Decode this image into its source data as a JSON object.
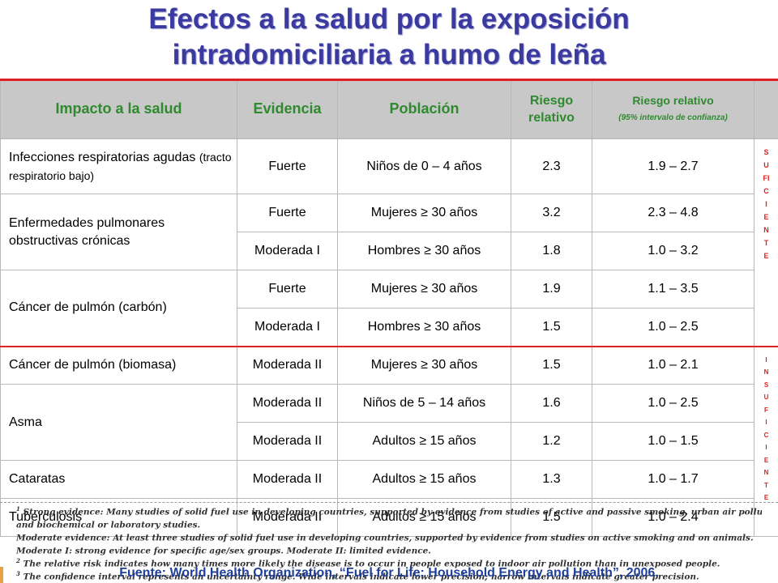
{
  "title": {
    "line1": "Efectos a la salud por la exposición",
    "line2": "intradomiciliaria a humo de leña"
  },
  "table": {
    "headers": {
      "impact": "Impacto a la salud",
      "evidence": "Evidencia",
      "population": "Población",
      "rr": "Riesgo relativo",
      "rr_ci": "Riesgo relativo",
      "rr_ci_sub": "(95% intervalo de confianza)"
    },
    "rows": [
      {
        "impact": "Infecciones respiratorias agudas",
        "impact_note": "(tracto respiratorio bajo)",
        "evidence": "Fuerte",
        "population": "Niños de 0 – 4 años",
        "rr": "2.3",
        "ci": "1.9 – 2.7"
      },
      {
        "impact": "Enfermedades pulmonares obstructivas crónicas",
        "evidence": "Fuerte",
        "population": "Mujeres ≥ 30 años",
        "rr": "3.2",
        "ci": "2.3 – 4.8"
      },
      {
        "evidence": "Moderada I",
        "population": "Hombres ≥ 30 años",
        "rr": "1.8",
        "ci": "1.0 – 3.2"
      },
      {
        "impact": "Cáncer de pulmón (carbón)",
        "evidence": "Fuerte",
        "population": "Mujeres ≥ 30 años",
        "rr": "1.9",
        "ci": "1.1 – 3.5"
      },
      {
        "evidence": "Moderada I",
        "population": "Hombres ≥ 30 años",
        "rr": "1.5",
        "ci": "1.0 – 2.5"
      },
      {
        "impact": "Cáncer de pulmón (biomasa)",
        "evidence": "Moderada II",
        "population": "Mujeres ≥ 30 años",
        "rr": "1.5",
        "ci": "1.0 – 2.1"
      },
      {
        "impact": "Asma",
        "evidence": "Moderada II",
        "population": "Niños de 5 – 14 años",
        "rr": "1.6",
        "ci": "1.0 – 2.5"
      },
      {
        "evidence": "Moderada II",
        "population": "Adultos ≥ 15 años",
        "rr": "1.2",
        "ci": "1.0 – 1.5"
      },
      {
        "impact": "Cataratas",
        "evidence": "Moderada II",
        "population": "Adultos ≥ 15 años",
        "rr": "1.3",
        "ci": "1.0 – 1.7"
      },
      {
        "impact": "Tuberculosis",
        "evidence": "Moderada II",
        "population": "Adultos ≥ 15 años",
        "rr": "1.5",
        "ci": "1.0 – 2.4"
      }
    ],
    "side_labels": {
      "sufficient": "SUFICIENTE",
      "insufficient": "INSUFICIENTE"
    }
  },
  "notes": [
    {
      "marker": "1",
      "text": "Strong evidence: Many studies of solid fuel use in developing countries, supported by evidence from studies of active and passive smoking, urban air pollution"
    },
    {
      "marker": "",
      "text": "and biochemical or laboratory studies."
    },
    {
      "marker": "",
      "text": "Moderate evidence: At least three studies of solid fuel use in developing countries, supported by evidence from studies on active smoking and on animals."
    },
    {
      "marker": "",
      "text": "Moderate I: strong evidence for specific age/sex groups. Moderate II: limited evidence."
    },
    {
      "marker": "2",
      "text": "The relative risk indicates how many times more likely the disease is to occur in people exposed to indoor air pollution than in unexposed people."
    },
    {
      "marker": "3",
      "text": "The confidence interval represents an uncertainty range. Wide intervals indicate lower precision; narrow intervals indicate greater precision."
    }
  ],
  "source": "Fuente: World Health Organization, “Fuel for Life: Household Energy and Health”, 2006."
}
